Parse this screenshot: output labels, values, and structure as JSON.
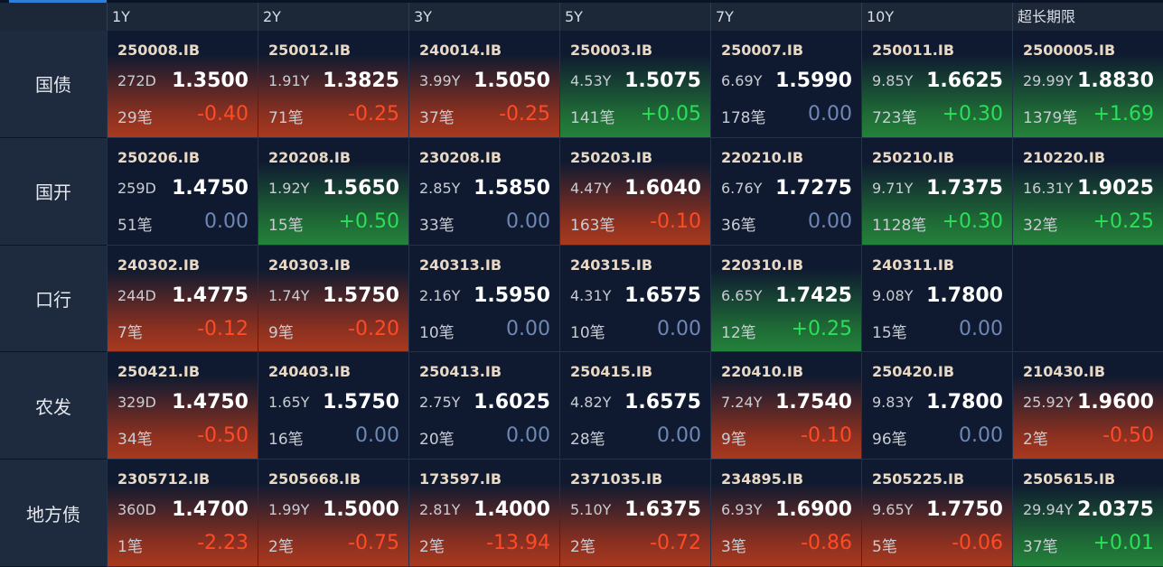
{
  "columns": [
    "1Y",
    "2Y",
    "3Y",
    "5Y",
    "7Y",
    "10Y",
    "超长期限"
  ],
  "rows": [
    {
      "label": "国债",
      "cells": [
        {
          "code": "250008.IB",
          "term": "272D",
          "yield": "1.3500",
          "count": "29笔",
          "change": "-0.40",
          "trend": "down"
        },
        {
          "code": "250012.IB",
          "term": "1.91Y",
          "yield": "1.3825",
          "count": "71笔",
          "change": "-0.25",
          "trend": "down"
        },
        {
          "code": "240014.IB",
          "term": "3.99Y",
          "yield": "1.5050",
          "count": "37笔",
          "change": "-0.25",
          "trend": "down"
        },
        {
          "code": "250003.IB",
          "term": "4.53Y",
          "yield": "1.5075",
          "count": "141笔",
          "change": "+0.05",
          "trend": "up"
        },
        {
          "code": "250007.IB",
          "term": "6.69Y",
          "yield": "1.5990",
          "count": "178笔",
          "change": "0.00",
          "trend": "flat"
        },
        {
          "code": "250011.IB",
          "term": "9.85Y",
          "yield": "1.6625",
          "count": "723笔",
          "change": "+0.30",
          "trend": "up"
        },
        {
          "code": "2500005.IB",
          "term": "29.99Y",
          "yield": "1.8830",
          "count": "1379笔",
          "change": "+1.69",
          "trend": "up"
        }
      ]
    },
    {
      "label": "国开",
      "cells": [
        {
          "code": "250206.IB",
          "term": "259D",
          "yield": "1.4750",
          "count": "51笔",
          "change": "0.00",
          "trend": "flat"
        },
        {
          "code": "220208.IB",
          "term": "1.92Y",
          "yield": "1.5650",
          "count": "15笔",
          "change": "+0.50",
          "trend": "up"
        },
        {
          "code": "230208.IB",
          "term": "2.85Y",
          "yield": "1.5850",
          "count": "33笔",
          "change": "0.00",
          "trend": "flat"
        },
        {
          "code": "250203.IB",
          "term": "4.47Y",
          "yield": "1.6040",
          "count": "163笔",
          "change": "-0.10",
          "trend": "down"
        },
        {
          "code": "220210.IB",
          "term": "6.76Y",
          "yield": "1.7275",
          "count": "36笔",
          "change": "0.00",
          "trend": "flat"
        },
        {
          "code": "250210.IB",
          "term": "9.71Y",
          "yield": "1.7375",
          "count": "1128笔",
          "change": "+0.30",
          "trend": "up"
        },
        {
          "code": "210220.IB",
          "term": "16.31Y",
          "yield": "1.9025",
          "count": "32笔",
          "change": "+0.25",
          "trend": "up"
        }
      ]
    },
    {
      "label": "口行",
      "cells": [
        {
          "code": "240302.IB",
          "term": "244D",
          "yield": "1.4775",
          "count": "7笔",
          "change": "-0.12",
          "trend": "down"
        },
        {
          "code": "240303.IB",
          "term": "1.74Y",
          "yield": "1.5750",
          "count": "9笔",
          "change": "-0.20",
          "trend": "down"
        },
        {
          "code": "240313.IB",
          "term": "2.16Y",
          "yield": "1.5950",
          "count": "10笔",
          "change": "0.00",
          "trend": "flat"
        },
        {
          "code": "240315.IB",
          "term": "4.31Y",
          "yield": "1.6575",
          "count": "10笔",
          "change": "0.00",
          "trend": "flat"
        },
        {
          "code": "220310.IB",
          "term": "6.65Y",
          "yield": "1.7425",
          "count": "12笔",
          "change": "+0.25",
          "trend": "up"
        },
        {
          "code": "240311.IB",
          "term": "9.08Y",
          "yield": "1.7800",
          "count": "15笔",
          "change": "0.00",
          "trend": "flat"
        },
        null
      ]
    },
    {
      "label": "农发",
      "cells": [
        {
          "code": "250421.IB",
          "term": "329D",
          "yield": "1.4750",
          "count": "34笔",
          "change": "-0.50",
          "trend": "down"
        },
        {
          "code": "240403.IB",
          "term": "1.65Y",
          "yield": "1.5750",
          "count": "16笔",
          "change": "0.00",
          "trend": "flat"
        },
        {
          "code": "250413.IB",
          "term": "2.75Y",
          "yield": "1.6025",
          "count": "20笔",
          "change": "0.00",
          "trend": "flat"
        },
        {
          "code": "250415.IB",
          "term": "4.82Y",
          "yield": "1.6575",
          "count": "28笔",
          "change": "0.00",
          "trend": "flat"
        },
        {
          "code": "220410.IB",
          "term": "7.24Y",
          "yield": "1.7540",
          "count": "9笔",
          "change": "-0.10",
          "trend": "down"
        },
        {
          "code": "250420.IB",
          "term": "9.83Y",
          "yield": "1.7800",
          "count": "96笔",
          "change": "0.00",
          "trend": "flat"
        },
        {
          "code": "210430.IB",
          "term": "25.92Y",
          "yield": "1.9600",
          "count": "2笔",
          "change": "-0.50",
          "trend": "down"
        }
      ]
    },
    {
      "label": "地方债",
      "cells": [
        {
          "code": "2305712.IB",
          "term": "360D",
          "yield": "1.4700",
          "count": "1笔",
          "change": "-2.23",
          "trend": "down"
        },
        {
          "code": "2505668.IB",
          "term": "1.99Y",
          "yield": "1.5000",
          "count": "2笔",
          "change": "-0.75",
          "trend": "down"
        },
        {
          "code": "173597.IB",
          "term": "2.81Y",
          "yield": "1.4000",
          "count": "2笔",
          "change": "-13.94",
          "trend": "down"
        },
        {
          "code": "2371035.IB",
          "term": "5.10Y",
          "yield": "1.6375",
          "count": "2笔",
          "change": "-0.72",
          "trend": "down"
        },
        {
          "code": "234895.IB",
          "term": "6.93Y",
          "yield": "1.6900",
          "count": "3笔",
          "change": "-0.86",
          "trend": "down"
        },
        {
          "code": "2505225.IB",
          "term": "9.65Y",
          "yield": "1.7750",
          "count": "5笔",
          "change": "-0.06",
          "trend": "down"
        },
        {
          "code": "2505615.IB",
          "term": "29.94Y",
          "yield": "2.0375",
          "count": "37笔",
          "change": "+0.01",
          "trend": "up"
        }
      ]
    }
  ]
}
